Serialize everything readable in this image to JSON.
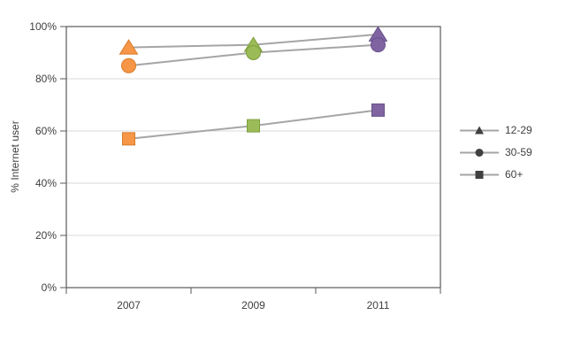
{
  "chart_data": {
    "type": "line",
    "title": "",
    "xlabel": "",
    "ylabel": "% Internet user",
    "unit": "%",
    "categories": [
      "2007",
      "2009",
      "2011"
    ],
    "series": [
      {
        "name": "12-29",
        "marker": "triangle",
        "values": [
          92,
          93,
          97
        ]
      },
      {
        "name": "30-59",
        "marker": "circle",
        "values": [
          85,
          90,
          93
        ]
      },
      {
        "name": "60+",
        "marker": "square",
        "values": [
          57,
          62,
          68
        ]
      }
    ],
    "ylim": [
      0,
      100
    ],
    "yticks": [
      {
        "value": 0,
        "label": "0%"
      },
      {
        "value": 20,
        "label": "20%"
      },
      {
        "value": 40,
        "label": "40%"
      },
      {
        "value": 60,
        "label": "60%"
      },
      {
        "value": 80,
        "label": "80%"
      },
      {
        "value": 100,
        "label": "100%"
      }
    ],
    "grid": "horizontal",
    "legend_position": "right",
    "colors": {
      "points_by_category": {
        "2007": {
          "fill": "#F79646",
          "stroke": "#D87C2A"
        },
        "2009": {
          "fill": "#9BBB59",
          "stroke": "#7EA13D"
        },
        "2011": {
          "fill": "#8064A2",
          "stroke": "#66508A"
        }
      },
      "line": "#A5A5A5",
      "legend_marker": "#404040",
      "gridline": "#D9D9D9",
      "axis": "#595959",
      "text": "#3F3F3F"
    }
  }
}
